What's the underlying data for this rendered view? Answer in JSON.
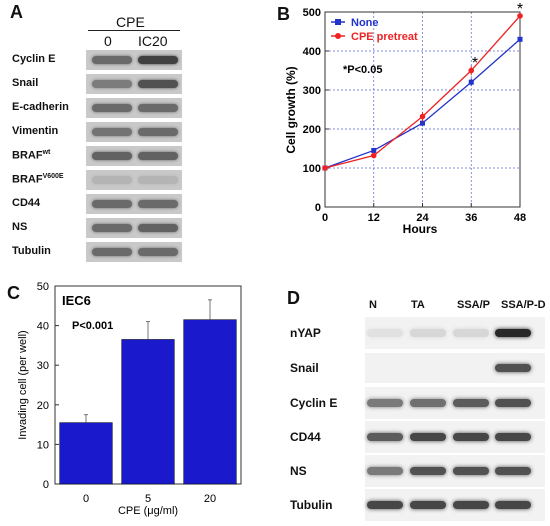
{
  "panels": {
    "a": "A",
    "b": "B",
    "c": "C",
    "d": "D"
  },
  "panel_a": {
    "header": "CPE",
    "columns": [
      "0",
      "IC20"
    ],
    "rows": [
      {
        "label": "Cyclin E",
        "sup": ""
      },
      {
        "label": "Snail",
        "sup": ""
      },
      {
        "label": "E-cadherin",
        "sup": ""
      },
      {
        "label": "Vimentin",
        "sup": ""
      },
      {
        "label": "BRAF",
        "sup": "wt"
      },
      {
        "label": "BRAF",
        "sup": "V600E"
      },
      {
        "label": "CD44",
        "sup": ""
      },
      {
        "label": "NS",
        "sup": ""
      },
      {
        "label": "Tubulin",
        "sup": ""
      }
    ]
  },
  "panel_d": {
    "columns": [
      "N",
      "TA",
      "SSA/P",
      "SSA/P-D"
    ],
    "rows": [
      "nYAP",
      "Snail",
      "Cyclin E",
      "CD44",
      "NS",
      "Tubulin"
    ]
  },
  "colors": {
    "none": "#2233cc",
    "cpe": "#ee2222",
    "bar": "#1a1acc",
    "grid": "#5566cc"
  },
  "chart_data": [
    {
      "type": "line",
      "title": "",
      "xlabel": "Hours",
      "ylabel": "Cell growth (%)",
      "x": [
        0,
        12,
        24,
        36,
        48
      ],
      "xticks": [
        "0",
        "12",
        "24",
        "36",
        "48"
      ],
      "yticks": [
        "0",
        "100",
        "200",
        "300",
        "400",
        "500"
      ],
      "xlim": [
        0,
        48
      ],
      "ylim": [
        0,
        500
      ],
      "grid": true,
      "legend": "top-left",
      "series": [
        {
          "name": "None",
          "values": [
            100,
            145,
            215,
            320,
            430
          ],
          "errors": [
            5,
            6,
            8,
            10,
            8
          ]
        },
        {
          "name": "CPE pretreat",
          "values": [
            100,
            132,
            232,
            350,
            490
          ],
          "errors": [
            5,
            7,
            12,
            12,
            8
          ]
        }
      ],
      "annotations": [
        "*P<0.05",
        "*",
        "*"
      ]
    },
    {
      "type": "bar",
      "title": "IEC6",
      "xlabel": "CPE (μg/ml)",
      "ylabel": "Invading cell (per well)",
      "categories": [
        "0",
        "5",
        "20"
      ],
      "values": [
        15.5,
        36.5,
        41.5
      ],
      "errors": [
        2,
        4.5,
        5
      ],
      "yticks": [
        "0",
        "10",
        "20",
        "30",
        "40",
        "50"
      ],
      "ylim": [
        0,
        50
      ],
      "annotation": "P<0.001"
    }
  ]
}
